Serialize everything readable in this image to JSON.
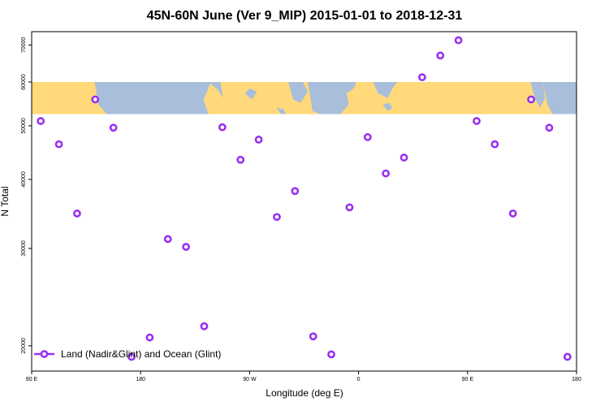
{
  "chart_data": {
    "type": "scatter",
    "title": "45N-60N June (Ver 9_MIP)   2015-01-01 to 2018-12-31",
    "xlabel": "Longitude (deg E)",
    "ylabel": "N Total",
    "xlim": [
      90,
      540
    ],
    "ylim": [
      18000,
      74000
    ],
    "y_scale": "log",
    "x_ticks": [
      {
        "value": 90,
        "label": "90 E"
      },
      {
        "value": 180,
        "label": "180"
      },
      {
        "value": 270,
        "label": "90 W"
      },
      {
        "value": 360,
        "label": "0"
      },
      {
        "value": 450,
        "label": "90 E"
      },
      {
        "value": 540,
        "label": "180"
      }
    ],
    "y_ticks": [
      {
        "value": 20000,
        "label": "20000"
      },
      {
        "value": 30000,
        "label": "30000"
      },
      {
        "value": 40000,
        "label": "40000"
      },
      {
        "value": 50000,
        "label": "50000"
      },
      {
        "value": 60000,
        "label": "60000"
      },
      {
        "value": 70000,
        "label": "70000"
      }
    ],
    "map_band": {
      "description": "world map strip 45N-60N",
      "lon_start": 90,
      "lon_end": 540,
      "y_low": 52500,
      "y_high": 60000
    },
    "colors": {
      "marker": "#9b30f0",
      "marker_fill": "#ffffff",
      "land": "#ffd97a",
      "ocean": "#a9bedb"
    },
    "legend": {
      "label": "Land (Nadir&Glint) and Ocean (Glint)",
      "position": "bottom-left"
    },
    "series": [
      {
        "name": "Land (Nadir&Glint) and Ocean (Glint)",
        "x": [
          97.5,
          112.5,
          127.5,
          142.5,
          157.5,
          172.5,
          187.5,
          202.5,
          217.5,
          232.5,
          247.5,
          262.5,
          277.5,
          292.5,
          307.5,
          322.5,
          337.5,
          352.5,
          367.5,
          382.5,
          397.5,
          412.5,
          427.5,
          442.5,
          457.5,
          472.5,
          487.5,
          502.5,
          517.5,
          532.5
        ],
        "y": [
          51000,
          46300,
          34700,
          55800,
          49600,
          19100,
          20700,
          31200,
          30200,
          21700,
          49700,
          43400,
          47200,
          34200,
          38100,
          20800,
          19300,
          35600,
          47700,
          41000,
          43800,
          61200,
          67000,
          71400,
          51000,
          46300,
          34700,
          55800,
          49600,
          19100
        ]
      }
    ]
  }
}
